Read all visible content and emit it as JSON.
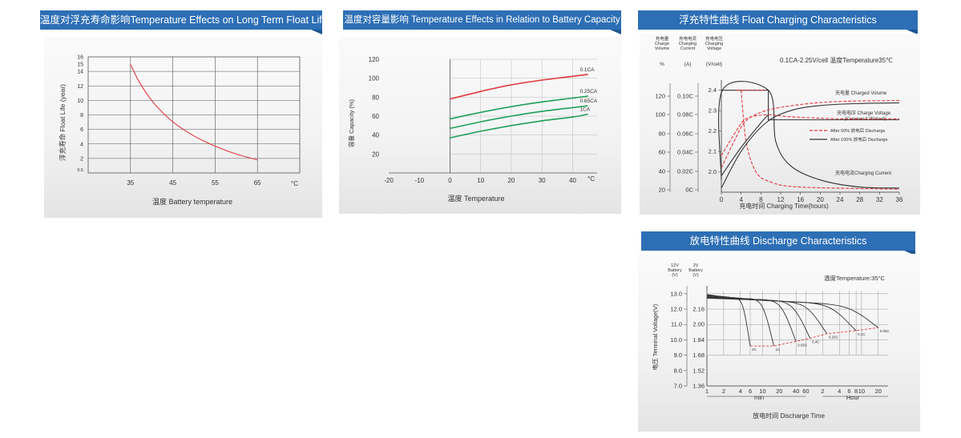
{
  "palette": {
    "banner": "#2d6fb5",
    "red": "#e0393e",
    "green": "#1fa05a",
    "dark": "#333333"
  },
  "chart_data": [
    {
      "type": "line",
      "title": "温度对浮充寿命影响Temperature Effects on Long Term Float Life",
      "xlabel": "温度 Battery temperature",
      "ylabel": "浮充寿命 Float Life (year)",
      "x_unit": "°C",
      "xticks": [
        35,
        45,
        55,
        65
      ],
      "yticks": [
        0.5,
        2,
        4,
        6,
        8,
        10,
        12,
        14,
        15,
        16
      ],
      "xlim": [
        25,
        75
      ],
      "ylim": [
        0,
        16
      ],
      "series": [
        {
          "x": [
            35,
            37,
            40,
            43,
            46,
            50,
            55,
            60,
            65
          ],
          "values": [
            15,
            12.6,
            10,
            8.1,
            6.6,
            5.1,
            3.7,
            2.6,
            1.8
          ]
        }
      ]
    },
    {
      "type": "line",
      "title": "温度对容量影响 Temperature Effects in Relation to Battery Capacity",
      "xlabel": "温度 Temperature",
      "ylabel": "容量 Capacity (%)",
      "x_unit": "°C",
      "xticks": [
        -20,
        -10,
        0,
        10,
        20,
        30,
        40
      ],
      "yticks": [
        20,
        40,
        60,
        80,
        100,
        120
      ],
      "xlim": [
        -20,
        48
      ],
      "ylim": [
        0,
        120
      ],
      "series": [
        {
          "name": "0.1CA",
          "x": [
            0,
            10,
            20,
            30,
            40,
            45
          ],
          "values": [
            78,
            86,
            93,
            98,
            102,
            104
          ]
        },
        {
          "name": "0.25CA",
          "x": [
            0,
            10,
            20,
            30,
            40,
            45
          ],
          "values": [
            57,
            64,
            70,
            75,
            79,
            81
          ]
        },
        {
          "name": "0.65CA",
          "x": [
            0,
            10,
            20,
            30,
            40,
            45
          ],
          "values": [
            47,
            54,
            60,
            65,
            69,
            71
          ]
        },
        {
          "name": "1CA",
          "x": [
            0,
            10,
            20,
            30,
            40,
            45
          ],
          "values": [
            37,
            44,
            50,
            55,
            59,
            62
          ]
        }
      ]
    },
    {
      "type": "line",
      "title": "浮充特性曲线 Float Charging Characteristics",
      "condition": "0.1CA-2.25V/cell  温度Temperature35℃",
      "axis_headers": [
        {
          "lines": [
            "充电量",
            "Charge",
            "Volume"
          ],
          "unit": "%"
        },
        {
          "lines": [
            "充电电流",
            "Charging",
            "Current"
          ],
          "unit": "(A)"
        },
        {
          "lines": [
            "充电电压",
            "Charging",
            "Voltage"
          ],
          "unit": "(V/cell)"
        }
      ],
      "xlabel": "充电时间 Charging Time(hours)",
      "xticks": [
        0,
        4,
        8,
        12,
        16,
        20,
        24,
        28,
        32,
        36
      ],
      "yticks_volume": [
        20,
        40,
        60,
        80,
        100,
        120
      ],
      "yticks_current": [
        "0C",
        "0.02C",
        "0.04C",
        "0.06C",
        "0.08C",
        "0.10C"
      ],
      "yticks_voltage": [
        2.0,
        2.1,
        2.2,
        2.3,
        2.4
      ],
      "xlim": [
        0,
        36
      ],
      "ylim_voltage": [
        1.9,
        2.45
      ],
      "annotations": [
        {
          "text": "充电量 Charged Volume"
        },
        {
          "text": "充电电压 Charge Voltage"
        },
        {
          "text": "(Constant 2.25V/cell)"
        },
        {
          "text": "充电电流Charging Current"
        }
      ],
      "legend": [
        {
          "name": "After 50% 放电后 Discharge",
          "style": "dashed",
          "color": "#e0393e"
        },
        {
          "name": "After 100% 放电后 Discharge",
          "style": "solid",
          "color": "#333333"
        }
      ]
    },
    {
      "type": "line",
      "title": "放电特性曲线 Discharge Characteristics",
      "condition": "温度Temperature:35°C",
      "axis_headers": [
        {
          "lines": [
            "12V",
            "Battery",
            "(V)"
          ]
        },
        {
          "lines": [
            "2V",
            "Battery",
            "(V)"
          ]
        }
      ],
      "ylabel": "电压 Terminal Voltage(V)",
      "xlabel": "放电时间 Discharge Time",
      "yticks_12v": [
        7.0,
        8.0,
        9.0,
        10.0,
        11.0,
        12.0,
        13.0
      ],
      "yticks_2v": [
        1.36,
        1.52,
        1.68,
        1.84,
        2.0,
        2.16
      ],
      "xticks_min": [
        1,
        2,
        4,
        6,
        10,
        20,
        40,
        60
      ],
      "xticks_hour": [
        2,
        4,
        6,
        8,
        10,
        20
      ],
      "x_unit_min": "min",
      "x_unit_hour": "Hour",
      "series": [
        {
          "name": "2C",
          "end_min": 6,
          "end_v": 9.6
        },
        {
          "name": "1C",
          "end_min": 16,
          "end_v": 9.6
        },
        {
          "name": "0.65C",
          "end_min": 40,
          "end_v": 9.9
        },
        {
          "name": "0.4C",
          "end_min": 72,
          "end_v": 10.1
        },
        {
          "name": "0.25C",
          "end_min": 144,
          "end_v": 10.4
        },
        {
          "name": "0.1C",
          "end_min": 480,
          "end_v": 10.6
        },
        {
          "name": "0.05C",
          "end_min": 1200,
          "end_v": 10.8
        }
      ]
    }
  ]
}
